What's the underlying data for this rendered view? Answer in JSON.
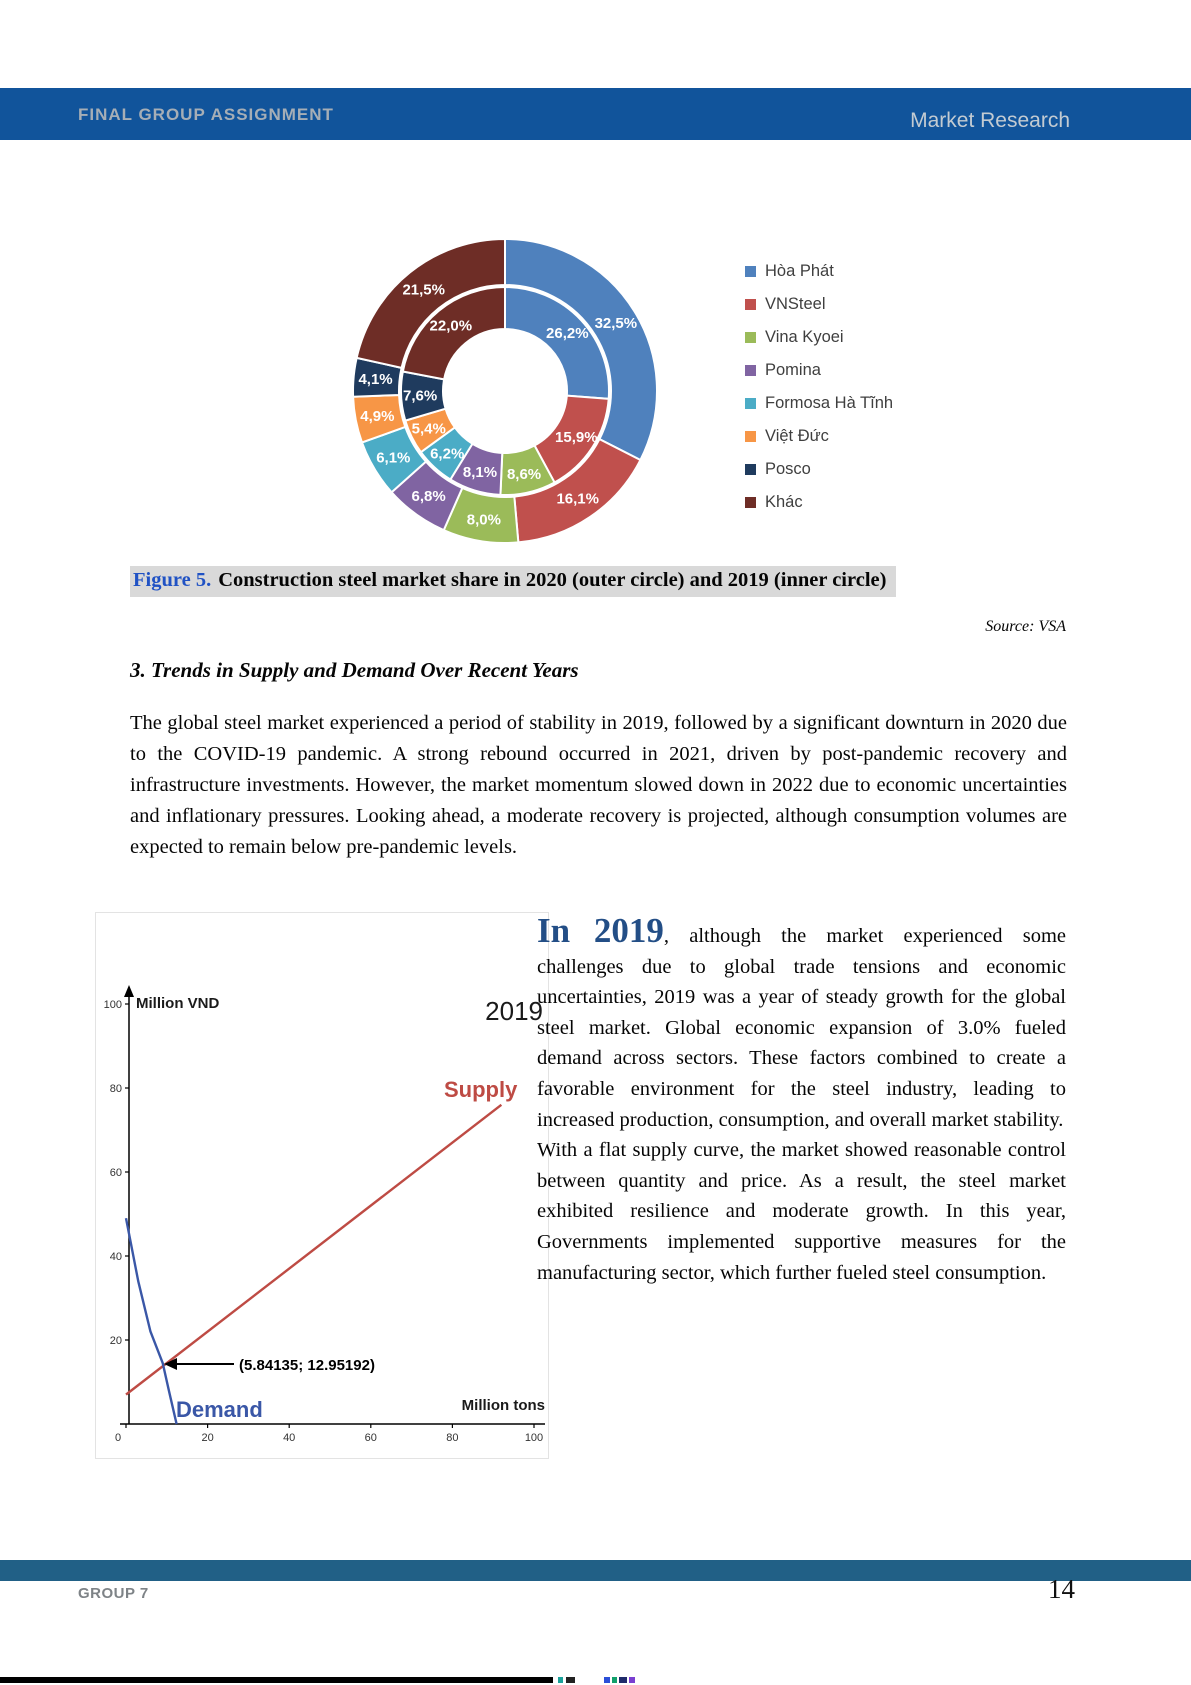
{
  "header": {
    "left": "FINAL GROUP ASSIGNMENT",
    "right": "Market Research"
  },
  "figure": {
    "caption_label": "Figure 5.",
    "caption_text": "Construction steel market share in 2020 (outer circle) and 2019 (inner circle)",
    "source": "Source: VSA"
  },
  "section": {
    "heading": "3. Trends in Supply and Demand Over Recent Years",
    "paragraph": "The global steel market experienced a period of stability in 2019, followed by a significant downturn in 2020 due to the COVID-19 pandemic. A strong rebound occurred in 2021, driven by post-pandemic recovery and infrastructure investments. However, the market momentum slowed down in 2022 due to economic uncertainties and inflationary pressures. Looking ahead, a moderate recovery is projected, although consumption volumes are expected to remain below pre-pandemic levels."
  },
  "year2019": {
    "lead": "In 2019",
    "after_lead": ", although the market experienced some challenges due to global trade tensions and economic uncertainties, 2019 was a year of steady growth for the global steel market. Global economic expansion of 3.0% fueled demand across sectors. These factors combined to create a favorable environment for the steel industry, leading to increased production, consumption, and overall market stability.",
    "paragraph2": "With a flat supply curve, the market showed reasonable control between quantity and price. As a result, the steel market exhibited resilience and moderate growth. In this year, Governments implemented supportive measures for the manufacturing sector, which further fueled steel consumption."
  },
  "footer": {
    "left": "GROUP 7",
    "page": "14"
  },
  "chart_data": [
    {
      "type": "pie",
      "subtype": "doughnut",
      "title": "Construction steel market share in 2020 (outer circle) and 2019 (inner circle)",
      "categories": [
        "Hòa Phát",
        "VNSteel",
        "Vina Kyoei",
        "Pomina",
        "Formosa Hà Tĩnh",
        "Việt Đức",
        "Posco",
        "Khác"
      ],
      "colors": [
        "#4F81BD",
        "#C0504D",
        "#9BBB59",
        "#8064A2",
        "#4BACC6",
        "#F79646",
        "#1F3B5E",
        "#6E2D26"
      ],
      "legend_position": "right",
      "series": [
        {
          "name": "2019 (inner circle)",
          "values": [
            26.2,
            15.9,
            8.6,
            8.1,
            6.2,
            5.4,
            7.6,
            22.0
          ],
          "labels": [
            "26,2%",
            "15,9%",
            "8,6%",
            "8,1%",
            "6,2%",
            "5,4%",
            "7,6%",
            "22,0%"
          ]
        },
        {
          "name": "2020 (outer circle)",
          "values": [
            32.5,
            16.1,
            8.0,
            6.8,
            6.1,
            4.9,
            4.1,
            21.5
          ],
          "labels": [
            "32,5%",
            "16,1%",
            "8,0%",
            "6,8%",
            "6,1%",
            "4,9%",
            "4,1%",
            "21,5%"
          ]
        }
      ]
    },
    {
      "type": "line",
      "title": "2019",
      "ylabel": "Million VND",
      "xlabel": "Million tons",
      "xlim": [
        0,
        105
      ],
      "ylim": [
        0,
        100
      ],
      "x_ticks": [
        0,
        20,
        40,
        60,
        80,
        100
      ],
      "y_ticks": [
        20,
        40,
        60,
        80,
        100
      ],
      "grid": false,
      "series": [
        {
          "name": "Supply",
          "color": "#BE4B44",
          "points": [
            [
              0,
              7
            ],
            [
              92,
              76
            ]
          ]
        },
        {
          "name": "Demand",
          "color": "#3A57A7",
          "points": [
            [
              0,
              49
            ],
            [
              3,
              34
            ],
            [
              6,
              22
            ],
            [
              9,
              14.5
            ],
            [
              10.5,
              8
            ],
            [
              12.4,
              0
            ]
          ]
        }
      ],
      "annotation": "(5.84135; 12.95192)",
      "annotation_point": [
        5.84135,
        12.95192
      ]
    }
  ]
}
